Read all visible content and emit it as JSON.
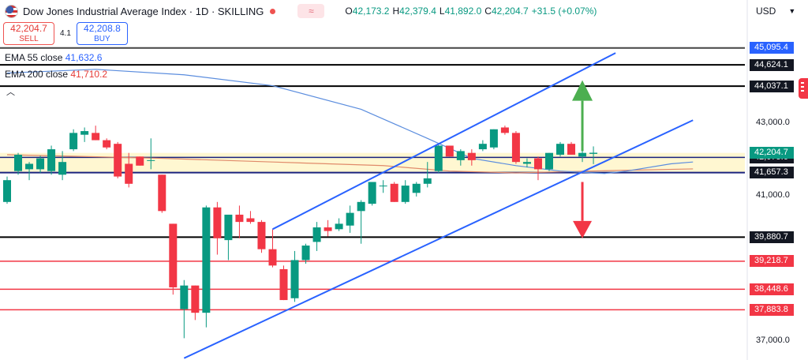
{
  "header": {
    "title": "Dow Jones Industrial Average Index · 1D · SKILLING",
    "toggle": "≈",
    "ohlc": [
      {
        "k": "O",
        "v": "42,173.2"
      },
      {
        "k": "H",
        "v": "42,379.4"
      },
      {
        "k": "L",
        "v": "41,892.0"
      },
      {
        "k": "C",
        "v": "42,204.7"
      },
      {
        "k": "",
        "v": "+31.5 (+0.07%)"
      }
    ]
  },
  "trade": {
    "sell_price": "42,204.7",
    "sell_label": "SELL",
    "spread": "4.1",
    "buy_price": "42,208.8",
    "buy_label": "BUY"
  },
  "indicators": {
    "ema55_label": "EMA 55 close",
    "ema55_value": "41,632.6",
    "ema200_label": "EMA 200 close",
    "ema200_value": "41,710.2"
  },
  "currency": "USD",
  "colors": {
    "up": "#089981",
    "down": "#f23645",
    "trend": "#2962ff",
    "ema55": "#5b8dde",
    "ema200": "#e08a6a"
  },
  "chart_data": {
    "type": "candlestick",
    "ylim": [
      36500,
      45800
    ],
    "y_ticks": [
      37000,
      38000,
      39000,
      40000,
      41000,
      42000,
      43000,
      44000,
      45000
    ],
    "y_tick_labels": {
      "37000": "37,000.0",
      "41000": "41,000.0",
      "43000": "43,000.0"
    },
    "candles": [
      {
        "o": 40850,
        "h": 41550,
        "l": 40800,
        "c": 41450
      },
      {
        "o": 41700,
        "h": 42200,
        "l": 41600,
        "c": 42150
      },
      {
        "o": 41750,
        "h": 41950,
        "l": 41450,
        "c": 41900
      },
      {
        "o": 41750,
        "h": 42120,
        "l": 41650,
        "c": 42050
      },
      {
        "o": 41700,
        "h": 42400,
        "l": 41600,
        "c": 42300
      },
      {
        "o": 41600,
        "h": 42250,
        "l": 41450,
        "c": 41950
      },
      {
        "o": 42300,
        "h": 42850,
        "l": 42250,
        "c": 42750
      },
      {
        "o": 42700,
        "h": 42900,
        "l": 42500,
        "c": 42800
      },
      {
        "o": 42750,
        "h": 42950,
        "l": 42550,
        "c": 42550
      },
      {
        "o": 42550,
        "h": 42600,
        "l": 42300,
        "c": 42350
      },
      {
        "o": 42450,
        "h": 42500,
        "l": 41500,
        "c": 41550
      },
      {
        "o": 41900,
        "h": 42200,
        "l": 41250,
        "c": 41350
      },
      {
        "o": 42100,
        "h": 42100,
        "l": 41850,
        "c": 41850
      },
      {
        "o": 42000,
        "h": 42600,
        "l": 41750,
        "c": 42000
      },
      {
        "o": 41600,
        "h": 41600,
        "l": 40550,
        "c": 40600
      },
      {
        "o": 40250,
        "h": 40250,
        "l": 38300,
        "c": 38500
      },
      {
        "o": 37900,
        "h": 38700,
        "l": 37100,
        "c": 38550
      },
      {
        "o": 38550,
        "h": 38550,
        "l": 37600,
        "c": 37800
      },
      {
        "o": 37800,
        "h": 40750,
        "l": 37400,
        "c": 40700
      },
      {
        "o": 40700,
        "h": 40850,
        "l": 39400,
        "c": 39850
      },
      {
        "o": 39800,
        "h": 40450,
        "l": 39250,
        "c": 40500
      },
      {
        "o": 40500,
        "h": 40750,
        "l": 39850,
        "c": 40300
      },
      {
        "o": 40400,
        "h": 40600,
        "l": 40250,
        "c": 40300
      },
      {
        "o": 40300,
        "h": 40350,
        "l": 39450,
        "c": 39550
      },
      {
        "o": 39550,
        "h": 40100,
        "l": 39050,
        "c": 39100
      },
      {
        "o": 39000,
        "h": 39100,
        "l": 38150,
        "c": 38150
      },
      {
        "o": 38200,
        "h": 39500,
        "l": 38100,
        "c": 39250
      },
      {
        "o": 39250,
        "h": 39700,
        "l": 39150,
        "c": 39650
      },
      {
        "o": 39750,
        "h": 40300,
        "l": 39500,
        "c": 40150
      },
      {
        "o": 40150,
        "h": 40350,
        "l": 39900,
        "c": 40050
      },
      {
        "o": 40100,
        "h": 40400,
        "l": 40050,
        "c": 40250
      },
      {
        "o": 40200,
        "h": 40750,
        "l": 40000,
        "c": 40550
      },
      {
        "o": 40600,
        "h": 40900,
        "l": 39700,
        "c": 40850
      },
      {
        "o": 40800,
        "h": 41400,
        "l": 40750,
        "c": 41400
      },
      {
        "o": 41300,
        "h": 41450,
        "l": 41100,
        "c": 41300
      },
      {
        "o": 41350,
        "h": 41400,
        "l": 40850,
        "c": 40850
      },
      {
        "o": 40850,
        "h": 41450,
        "l": 40800,
        "c": 41300
      },
      {
        "o": 41100,
        "h": 41400,
        "l": 41000,
        "c": 41350
      },
      {
        "o": 41350,
        "h": 41950,
        "l": 41250,
        "c": 41500
      },
      {
        "o": 41700,
        "h": 42450,
        "l": 41650,
        "c": 42400
      },
      {
        "o": 42400,
        "h": 42400,
        "l": 42100,
        "c": 42100
      },
      {
        "o": 42000,
        "h": 42300,
        "l": 41850,
        "c": 42250
      },
      {
        "o": 42200,
        "h": 42300,
        "l": 41850,
        "c": 42000
      },
      {
        "o": 42300,
        "h": 42550,
        "l": 42250,
        "c": 42450
      },
      {
        "o": 42350,
        "h": 42850,
        "l": 42300,
        "c": 42850
      },
      {
        "o": 42900,
        "h": 42950,
        "l": 42700,
        "c": 42750
      },
      {
        "o": 42750,
        "h": 42800,
        "l": 41900,
        "c": 41950
      },
      {
        "o": 41900,
        "h": 42050,
        "l": 41800,
        "c": 41950
      },
      {
        "o": 42050,
        "h": 42100,
        "l": 41450,
        "c": 41750
      },
      {
        "o": 41750,
        "h": 42200,
        "l": 41700,
        "c": 42200
      },
      {
        "o": 42150,
        "h": 42500,
        "l": 42100,
        "c": 42450
      },
      {
        "o": 42450,
        "h": 42500,
        "l": 42150,
        "c": 42150
      },
      {
        "o": 42100,
        "h": 42750,
        "l": 41950,
        "c": 42200
      },
      {
        "o": 42173.2,
        "h": 42379.4,
        "l": 41892.0,
        "c": 42204.7
      }
    ],
    "ema55": [
      [
        0,
        44400
      ],
      [
        8,
        44500
      ],
      [
        16,
        44350
      ],
      [
        24,
        44050
      ],
      [
        32,
        43400
      ],
      [
        38,
        42600
      ],
      [
        42,
        42050
      ],
      [
        46,
        41850
      ],
      [
        50,
        41700
      ],
      [
        54,
        41632.6
      ],
      [
        56,
        41700
      ],
      [
        60,
        41900
      ],
      [
        62,
        41950
      ]
    ],
    "ema200": [
      [
        0,
        42150
      ],
      [
        14,
        42050
      ],
      [
        24,
        41950
      ],
      [
        34,
        41850
      ],
      [
        40,
        41700
      ],
      [
        46,
        41650
      ],
      [
        54,
        41710.2
      ],
      [
        62,
        41760
      ]
    ],
    "horizontal_levels": [
      {
        "value": 45087.8,
        "label": "45,087.8",
        "color": "#444444",
        "width": 2
      },
      {
        "value": 44624.1,
        "label": "44,624.1",
        "color": "#000000",
        "width": 2
      },
      {
        "value": 44037.1,
        "label": "44,037.1",
        "color": "#000000",
        "width": 2
      },
      {
        "value": 42075.6,
        "label": "42,075.6",
        "color": "#1a237e",
        "width": 1.5
      },
      {
        "value": 41657.3,
        "label": "41,657.3",
        "color": "#1a237e",
        "width": 2
      },
      {
        "value": 39880.7,
        "label": "39,880.7",
        "color": "#000000",
        "width": 2
      },
      {
        "value": 39218.7,
        "label": "39,218.7",
        "color": "#f23645",
        "width": 1.5
      },
      {
        "value": 38448.6,
        "label": "38,448.6",
        "color": "#f23645",
        "width": 1.5
      },
      {
        "value": 37883.8,
        "label": "37,883.8",
        "color": "#f23645",
        "width": 1.5
      }
    ],
    "price_tags": [
      {
        "value": 45095.4,
        "label": "45,095.4",
        "color": "#2962ff"
      },
      {
        "value": 42204.7,
        "label": "42,204.7",
        "color": "#089981"
      }
    ],
    "zone": [
      41657.3,
      42200
    ],
    "channel": {
      "lower": {
        "from": [
          16,
          36550
        ],
        "to": [
          62,
          43100
        ]
      },
      "upper": {
        "from": [
          24,
          40100
        ],
        "to": [
          55,
          44950
        ]
      }
    },
    "arrows": [
      {
        "at": 52,
        "from": 42250,
        "to": 44200,
        "dir": "up",
        "color": "#4caf50"
      },
      {
        "at": 52,
        "from": 41400,
        "to": 39850,
        "dir": "down",
        "color": "#f23645"
      }
    ]
  }
}
